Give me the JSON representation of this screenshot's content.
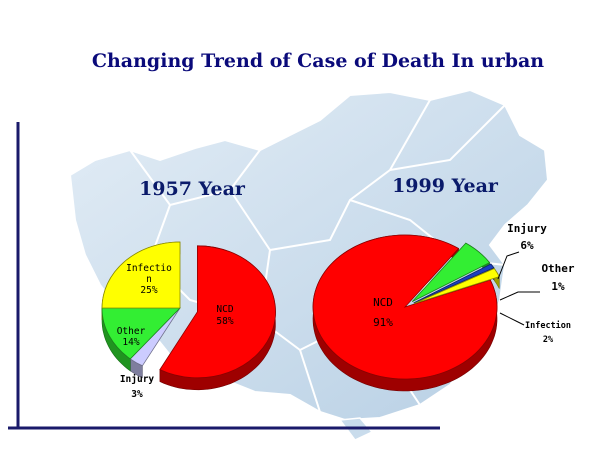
{
  "chart_data": [
    {
      "type": "pie",
      "title": "Changing Trend of Case of Death In urban",
      "subtitle": "1957 Year",
      "categories": [
        "NCD",
        "Injury",
        "Other",
        "Infection"
      ],
      "values": [
        58,
        3,
        14,
        25
      ],
      "value_labels": [
        "58%",
        "3%",
        "14%",
        "25%"
      ],
      "infection_label_parts": [
        "Infectio",
        "n"
      ],
      "colors": [
        "#ff0000",
        "#ccccff",
        "#33ee33",
        "#ffff00"
      ],
      "exploded": [
        "NCD"
      ],
      "style": "3d"
    },
    {
      "type": "pie",
      "subtitle": "1999 Year",
      "categories": [
        "NCD",
        "Injury",
        "Other",
        "Infection"
      ],
      "values": [
        91,
        6,
        1,
        2
      ],
      "value_labels": [
        "91%",
        "6%",
        "1%",
        "2%"
      ],
      "colors": [
        "#ff0000",
        "#33ee33",
        "#1a3fbf",
        "#ffff00"
      ],
      "exploded": [
        "Injury",
        "Other",
        "Infection"
      ],
      "style": "3d"
    }
  ],
  "colors": {
    "title": "#0a0a7a",
    "year_label": "#0a1a6a",
    "axis": "#1a1a6a",
    "map_fill": "#c9dcec",
    "map_stroke": "#ffffff"
  }
}
